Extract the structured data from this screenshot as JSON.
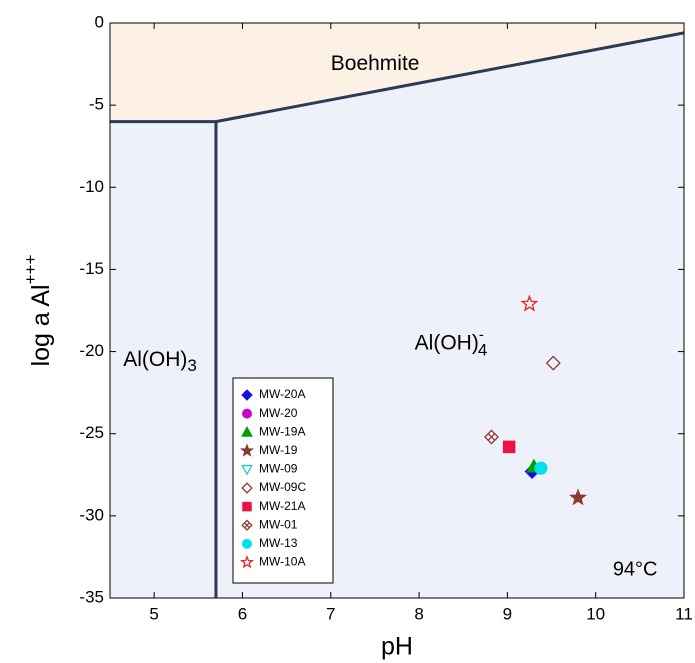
{
  "chart_data": {
    "type": "scatter",
    "xlabel": "pH",
    "ylabel": {
      "text": "log a Al",
      "sup": "+++"
    },
    "xlim": [
      4.5,
      11
    ],
    "ylim": [
      -35,
      0
    ],
    "xticks": [
      5,
      6,
      7,
      8,
      9,
      10,
      11
    ],
    "yticks": [
      0,
      -5,
      -10,
      -15,
      -20,
      -25,
      -30,
      -35
    ],
    "boundaries": [
      {
        "x": [
          4.5,
          5.7,
          11
        ],
        "y": [
          -6,
          -6,
          -0.6
        ]
      },
      {
        "x": [
          5.7,
          5.7
        ],
        "y": [
          -6,
          -35
        ]
      }
    ],
    "region_labels": [
      {
        "text": "Boehmite",
        "x": 7.0,
        "y": -2.5
      },
      {
        "text": "Al(OH)",
        "sub": "3",
        "x": 4.65,
        "y": -20.5
      },
      {
        "text": "Al(OH)",
        "sub": "4",
        "sup": "-",
        "x": 7.95,
        "y": -19.5
      }
    ],
    "annotation": {
      "text": "94°C",
      "x": 10.7,
      "y": -33.3
    },
    "series": [
      {
        "name": "MW-20A",
        "color": "#1010e0",
        "marker": "diamond",
        "filled": true,
        "x": [
          9.28
        ],
        "y": [
          -27.3
        ]
      },
      {
        "name": "MW-20",
        "color": "#cc00cc",
        "marker": "circle",
        "filled": true,
        "x": [],
        "y": []
      },
      {
        "name": "MW-19A",
        "color": "#00a000",
        "marker": "triangle",
        "filled": true,
        "x": [
          9.3
        ],
        "y": [
          -27.0
        ]
      },
      {
        "name": "MW-19",
        "color": "#8b3a2e",
        "marker": "star",
        "filled": true,
        "x": [
          9.8
        ],
        "y": [
          -28.9
        ]
      },
      {
        "name": "MW-09",
        "color": "#22cccc",
        "marker": "triangle-down",
        "filled": false,
        "x": [],
        "y": []
      },
      {
        "name": "MW-09C",
        "color": "#8b3a2e",
        "marker": "diamond",
        "filled": false,
        "x": [
          9.52
        ],
        "y": [
          -20.7
        ]
      },
      {
        "name": "MW-21A",
        "color": "#ee1144",
        "marker": "square",
        "filled": true,
        "x": [
          9.02
        ],
        "y": [
          -25.8
        ]
      },
      {
        "name": "MW-01",
        "color": "#8b3a2e",
        "marker": "diamond-x",
        "filled": false,
        "x": [
          8.82
        ],
        "y": [
          -25.2
        ]
      },
      {
        "name": "MW-13",
        "color": "#00e0ee",
        "marker": "circle",
        "filled": true,
        "x": [
          9.38
        ],
        "y": [
          -27.1
        ]
      },
      {
        "name": "MW-10A",
        "color": "#ee2222",
        "marker": "star",
        "filled": false,
        "x": [
          9.25
        ],
        "y": [
          -17.1
        ]
      }
    ]
  }
}
